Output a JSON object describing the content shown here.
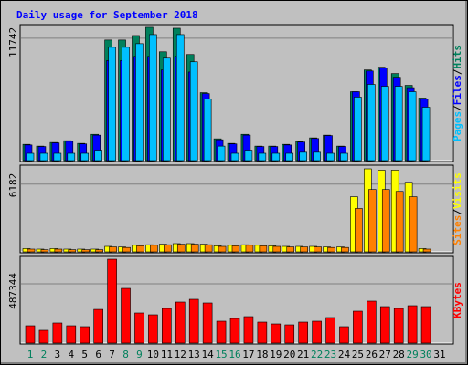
{
  "title": "Daily usage for September 2018",
  "legend_separator": "/",
  "chart_data": [
    {
      "type": "bar",
      "ylim": [
        0,
        12960
      ],
      "yticks": [
        11742
      ],
      "series": [
        {
          "name": "Hits",
          "color": "#00805c",
          "values": [
            1560,
            1390,
            1740,
            1910,
            1650,
            2520,
            11570,
            11570,
            12000,
            12790,
            10440,
            12700,
            10180,
            6520,
            2090,
            1650,
            2520,
            1390,
            1390,
            1560,
            1830,
            2180,
            2440,
            1390,
            6610,
            8700,
            8960,
            8350,
            7220,
            6000,
            0
          ]
        },
        {
          "name": "Files",
          "color": "#0000ff",
          "values": [
            1500,
            1350,
            1700,
            1850,
            1600,
            2440,
            9600,
            9600,
            10000,
            10000,
            8700,
            10000,
            8500,
            6430,
            2000,
            1600,
            2440,
            1350,
            1350,
            1500,
            1780,
            2120,
            2400,
            1350,
            6610,
            8600,
            8900,
            8000,
            7000,
            5900,
            0
          ]
        },
        {
          "name": "Pages",
          "color": "#00c0ff",
          "values": [
            700,
            700,
            700,
            700,
            700,
            1000,
            10870,
            10870,
            11220,
            12090,
            9830,
            12090,
            9480,
            5910,
            1390,
            700,
            1000,
            700,
            700,
            700,
            800,
            800,
            700,
            700,
            6090,
            7310,
            7130,
            7130,
            6610,
            5120,
            0
          ]
        }
      ]
    },
    {
      "type": "bar",
      "ylim": [
        0,
        7830
      ],
      "yticks": [
        6182
      ],
      "series": [
        {
          "name": "Visits",
          "color": "#ffff00",
          "values": [
            300,
            250,
            300,
            250,
            250,
            250,
            500,
            450,
            600,
            650,
            700,
            750,
            750,
            700,
            550,
            600,
            650,
            600,
            550,
            500,
            500,
            500,
            450,
            450,
            5030,
            7580,
            7460,
            7460,
            6350,
            300,
            0
          ]
        },
        {
          "name": "Sites",
          "color": "#ff8000",
          "values": [
            250,
            200,
            250,
            200,
            200,
            200,
            450,
            400,
            550,
            600,
            650,
            700,
            700,
            650,
            500,
            550,
            600,
            550,
            500,
            450,
            450,
            450,
            400,
            400,
            3960,
            5690,
            5690,
            5520,
            5030,
            250,
            0
          ]
        }
      ]
    },
    {
      "type": "bar",
      "ylim": [
        0,
        704800
      ],
      "yticks": [
        487344
      ],
      "categories": [
        "1",
        "2",
        "3",
        "4",
        "5",
        "6",
        "7",
        "8",
        "9",
        "10",
        "11",
        "12",
        "13",
        "14",
        "15",
        "16",
        "17",
        "18",
        "19",
        "20",
        "21",
        "22",
        "23",
        "24",
        "25",
        "26",
        "27",
        "28",
        "29",
        "30",
        "31"
      ],
      "category_colors": [
        "#00805c",
        "#00805c",
        "#000000",
        "#000000",
        "#000000",
        "#000000",
        "#000000",
        "#00805c",
        "#00805c",
        "#000000",
        "#000000",
        "#000000",
        "#000000",
        "#000000",
        "#00805c",
        "#00805c",
        "#000000",
        "#000000",
        "#000000",
        "#000000",
        "#000000",
        "#00805c",
        "#00805c",
        "#000000",
        "#000000",
        "#000000",
        "#000000",
        "#000000",
        "#00805c",
        "#00805c",
        "#000000"
      ],
      "series": [
        {
          "name": "KBytes",
          "color": "#ff0000",
          "values": [
            142400,
            105000,
            165000,
            142400,
            135000,
            277000,
            689700,
            449800,
            247400,
            232400,
            284900,
            337400,
            359900,
            329900,
            179900,
            202400,
            217400,
            172400,
            157400,
            149900,
            172400,
            179900,
            209900,
            135000,
            262400,
            344900,
            299900,
            284900,
            307400,
            299900,
            0
          ]
        }
      ]
    }
  ]
}
